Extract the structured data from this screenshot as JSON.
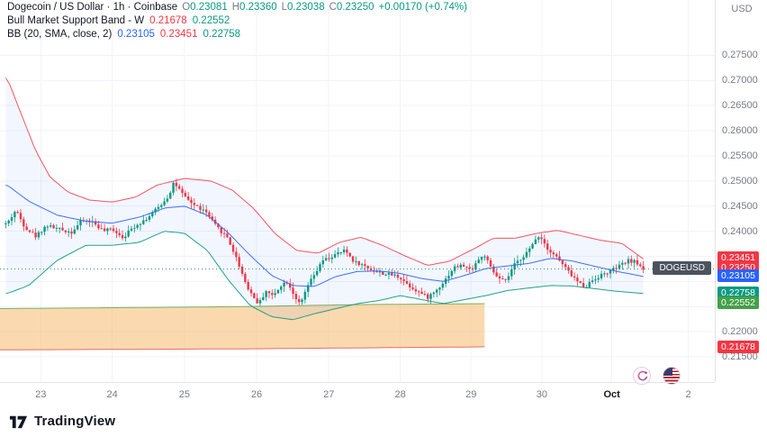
{
  "window": {
    "currency_unit": "USD"
  },
  "symbol_label": "DOGEUSD",
  "legend": {
    "title": "Dogecoin / US Dollar · 1h · Coinbase",
    "ohlc": [
      {
        "k": "O",
        "v": "0.23081"
      },
      {
        "k": "H",
        "v": "0.23360"
      },
      {
        "k": "L",
        "v": "0.23038"
      },
      {
        "k": "C",
        "v": "0.23250"
      }
    ],
    "change": "+0.00170 (+0.74%)",
    "indicators": [
      {
        "name": "Bull Market Support Band - W",
        "values": [
          {
            "v": "0.21678",
            "color": "#f23645"
          },
          {
            "v": "0.22552",
            "color": "#089981"
          }
        ]
      },
      {
        "name": "BB (20, SMA, close, 2)",
        "values": [
          {
            "v": "0.23105",
            "color": "#2962ff"
          },
          {
            "v": "0.23451",
            "color": "#f23645"
          },
          {
            "v": "0.22758",
            "color": "#089981"
          }
        ]
      }
    ]
  },
  "price_axis": {
    "ticks": [
      "0.27500",
      "0.27000",
      "0.26500",
      "0.26000",
      "0.25500",
      "0.25000",
      "0.24500",
      "0.24000",
      "0.22000",
      "0.21500"
    ],
    "labels": [
      {
        "value": "0.23451",
        "bg": "#f23645",
        "name": "bb-upper-price-label"
      },
      {
        "value": "0.23250",
        "bg": "#f23645",
        "name": "current-price-label"
      },
      {
        "value": "0.23105",
        "bg": "#2962ff",
        "name": "bb-basis-price-label"
      },
      {
        "value": "0.22758",
        "bg": "#089981",
        "name": "bb-lower-price-label"
      },
      {
        "value": "0.22552",
        "bg": "#43a047",
        "name": "bmsb-upper-price-label"
      },
      {
        "value": "0.21678",
        "bg": "#f23645",
        "name": "bmsb-lower-price-label"
      }
    ]
  },
  "time_axis": {
    "labels": [
      {
        "t": "23",
        "f": 0.057
      },
      {
        "t": "24",
        "f": 0.157
      },
      {
        "t": "25",
        "f": 0.258
      },
      {
        "t": "26",
        "f": 0.359
      },
      {
        "t": "27",
        "f": 0.46
      },
      {
        "t": "28",
        "f": 0.56
      },
      {
        "t": "29",
        "f": 0.659
      },
      {
        "t": "30",
        "f": 0.758
      },
      {
        "t": "Oct",
        "f": 0.856,
        "major": true
      },
      {
        "t": "2",
        "f": 0.963
      }
    ]
  },
  "corner_buttons": [
    {
      "icon": "sparkle-icon"
    },
    {
      "icon": "us-flag-icon"
    }
  ],
  "footer": {
    "brand": "TradingView"
  },
  "chart_data": {
    "type": "candlestick",
    "title": "Dogecoin / US Dollar · 1h · Coinbase",
    "symbol": "DOGEUSD",
    "timeframe": "1h",
    "exchange": "Coinbase",
    "ohlc_current": {
      "open": 0.23081,
      "high": 0.2336,
      "low": 0.23038,
      "close": 0.2325,
      "change": "+0.00170 (+0.74%)"
    },
    "y_domain": [
      0.21,
      0.286
    ],
    "grid": {
      "top": 0.275,
      "bottom": 0.215,
      "step": 0.005
    },
    "price_line": {
      "value": 0.2325,
      "color": "#1e887a"
    },
    "candle_count": 214,
    "candles_span": [
      0.012,
      0.9
    ],
    "close_path": [
      [
        0.01,
        0.2415
      ],
      [
        0.022,
        0.2442
      ],
      [
        0.035,
        0.2408
      ],
      [
        0.05,
        0.239
      ],
      [
        0.065,
        0.2412
      ],
      [
        0.08,
        0.2405
      ],
      [
        0.1,
        0.2398
      ],
      [
        0.115,
        0.2422
      ],
      [
        0.13,
        0.2418
      ],
      [
        0.145,
        0.24
      ],
      [
        0.157,
        0.2405
      ],
      [
        0.172,
        0.2388
      ],
      [
        0.188,
        0.241
      ],
      [
        0.205,
        0.2425
      ],
      [
        0.222,
        0.2448
      ],
      [
        0.236,
        0.247
      ],
      [
        0.243,
        0.2498
      ],
      [
        0.252,
        0.248
      ],
      [
        0.258,
        0.2468
      ],
      [
        0.272,
        0.2452
      ],
      [
        0.288,
        0.2438
      ],
      [
        0.302,
        0.241
      ],
      [
        0.318,
        0.2388
      ],
      [
        0.332,
        0.2342
      ],
      [
        0.345,
        0.2292
      ],
      [
        0.355,
        0.2268
      ],
      [
        0.362,
        0.2255
      ],
      [
        0.372,
        0.2282
      ],
      [
        0.382,
        0.227
      ],
      [
        0.392,
        0.2292
      ],
      [
        0.402,
        0.23
      ],
      [
        0.412,
        0.2272
      ],
      [
        0.42,
        0.2252
      ],
      [
        0.43,
        0.229
      ],
      [
        0.442,
        0.2318
      ],
      [
        0.452,
        0.2342
      ],
      [
        0.46,
        0.2346
      ],
      [
        0.472,
        0.2355
      ],
      [
        0.483,
        0.2362
      ],
      [
        0.495,
        0.234
      ],
      [
        0.508,
        0.2332
      ],
      [
        0.522,
        0.2322
      ],
      [
        0.538,
        0.2315
      ],
      [
        0.552,
        0.2312
      ],
      [
        0.56,
        0.2308
      ],
      [
        0.572,
        0.2292
      ],
      [
        0.585,
        0.228
      ],
      [
        0.598,
        0.2268
      ],
      [
        0.61,
        0.2282
      ],
      [
        0.622,
        0.2302
      ],
      [
        0.635,
        0.2328
      ],
      [
        0.648,
        0.2332
      ],
      [
        0.659,
        0.2322
      ],
      [
        0.668,
        0.2342
      ],
      [
        0.678,
        0.2352
      ],
      [
        0.688,
        0.2322
      ],
      [
        0.698,
        0.2305
      ],
      [
        0.708,
        0.23
      ],
      [
        0.718,
        0.233
      ],
      [
        0.73,
        0.2348
      ],
      [
        0.742,
        0.2365
      ],
      [
        0.752,
        0.2392
      ],
      [
        0.758,
        0.2385
      ],
      [
        0.768,
        0.2362
      ],
      [
        0.778,
        0.235
      ],
      [
        0.788,
        0.2332
      ],
      [
        0.798,
        0.2315
      ],
      [
        0.808,
        0.23
      ],
      [
        0.818,
        0.2288
      ],
      [
        0.828,
        0.2302
      ],
      [
        0.84,
        0.2312
      ],
      [
        0.856,
        0.2322
      ],
      [
        0.868,
        0.2332
      ],
      [
        0.88,
        0.2342
      ],
      [
        0.89,
        0.2338
      ],
      [
        0.9,
        0.2325
      ]
    ],
    "bb_upper": [
      [
        0.01,
        0.2705
      ],
      [
        0.03,
        0.2632
      ],
      [
        0.05,
        0.256
      ],
      [
        0.07,
        0.2508
      ],
      [
        0.095,
        0.2478
      ],
      [
        0.125,
        0.2462
      ],
      [
        0.157,
        0.2458
      ],
      [
        0.19,
        0.2468
      ],
      [
        0.22,
        0.2492
      ],
      [
        0.258,
        0.2505
      ],
      [
        0.295,
        0.25
      ],
      [
        0.325,
        0.2482
      ],
      [
        0.355,
        0.2445
      ],
      [
        0.385,
        0.2395
      ],
      [
        0.415,
        0.2362
      ],
      [
        0.445,
        0.2356
      ],
      [
        0.475,
        0.2378
      ],
      [
        0.505,
        0.2388
      ],
      [
        0.535,
        0.2372
      ],
      [
        0.565,
        0.2352
      ],
      [
        0.598,
        0.2332
      ],
      [
        0.628,
        0.234
      ],
      [
        0.659,
        0.2362
      ],
      [
        0.69,
        0.2386
      ],
      [
        0.72,
        0.2386
      ],
      [
        0.752,
        0.2396
      ],
      [
        0.78,
        0.2402
      ],
      [
        0.81,
        0.2392
      ],
      [
        0.84,
        0.2382
      ],
      [
        0.87,
        0.2376
      ],
      [
        0.9,
        0.2345
      ]
    ],
    "bb_basis": [
      [
        0.01,
        0.2492
      ],
      [
        0.04,
        0.246
      ],
      [
        0.08,
        0.2432
      ],
      [
        0.12,
        0.242
      ],
      [
        0.157,
        0.2416
      ],
      [
        0.195,
        0.2428
      ],
      [
        0.23,
        0.2446
      ],
      [
        0.258,
        0.245
      ],
      [
        0.29,
        0.2432
      ],
      [
        0.32,
        0.2396
      ],
      [
        0.35,
        0.2352
      ],
      [
        0.38,
        0.2312
      ],
      [
        0.41,
        0.2292
      ],
      [
        0.44,
        0.229
      ],
      [
        0.47,
        0.231
      ],
      [
        0.5,
        0.232
      ],
      [
        0.53,
        0.2321
      ],
      [
        0.56,
        0.2316
      ],
      [
        0.59,
        0.2306
      ],
      [
        0.62,
        0.23
      ],
      [
        0.65,
        0.2312
      ],
      [
        0.68,
        0.2326
      ],
      [
        0.71,
        0.2331
      ],
      [
        0.74,
        0.2336
      ],
      [
        0.77,
        0.2346
      ],
      [
        0.8,
        0.2341
      ],
      [
        0.83,
        0.2331
      ],
      [
        0.86,
        0.2321
      ],
      [
        0.9,
        0.231
      ]
    ],
    "bb_lower": [
      [
        0.01,
        0.2276
      ],
      [
        0.04,
        0.2292
      ],
      [
        0.08,
        0.2342
      ],
      [
        0.12,
        0.2372
      ],
      [
        0.157,
        0.2372
      ],
      [
        0.195,
        0.2378
      ],
      [
        0.23,
        0.24
      ],
      [
        0.258,
        0.2396
      ],
      [
        0.29,
        0.2362
      ],
      [
        0.32,
        0.2302
      ],
      [
        0.35,
        0.2252
      ],
      [
        0.38,
        0.223
      ],
      [
        0.41,
        0.2224
      ],
      [
        0.44,
        0.2236
      ],
      [
        0.47,
        0.2246
      ],
      [
        0.5,
        0.2256
      ],
      [
        0.53,
        0.2262
      ],
      [
        0.56,
        0.2272
      ],
      [
        0.59,
        0.2264
      ],
      [
        0.62,
        0.2256
      ],
      [
        0.65,
        0.2264
      ],
      [
        0.68,
        0.2272
      ],
      [
        0.71,
        0.2282
      ],
      [
        0.74,
        0.2287
      ],
      [
        0.77,
        0.2292
      ],
      [
        0.8,
        0.2291
      ],
      [
        0.83,
        0.2286
      ],
      [
        0.86,
        0.2281
      ],
      [
        0.9,
        0.2276
      ]
    ],
    "bmsb": {
      "end_frac": 0.678,
      "top": [
        [
          0.0,
          0.2246
        ],
        [
          0.34,
          0.225
        ],
        [
          0.5,
          0.2254
        ],
        [
          0.678,
          0.2256
        ]
      ],
      "bottom": [
        [
          0.0,
          0.2164
        ],
        [
          0.34,
          0.2166
        ],
        [
          0.678,
          0.217
        ]
      ],
      "fill": "rgba(247,186,110,0.55)",
      "top_color": "#6aa84f",
      "bottom_color": "#ef5350",
      "values": {
        "lower": 0.21678,
        "upper": 0.22552
      }
    },
    "colors": {
      "up": "#089981",
      "down": "#f23645",
      "bb_upper": "#f23645",
      "bb_basis": "#2962ff",
      "bb_lower": "#089981",
      "bb_fill": "rgba(41,98,255,0.06)",
      "grid": "#f0f3fa"
    }
  }
}
